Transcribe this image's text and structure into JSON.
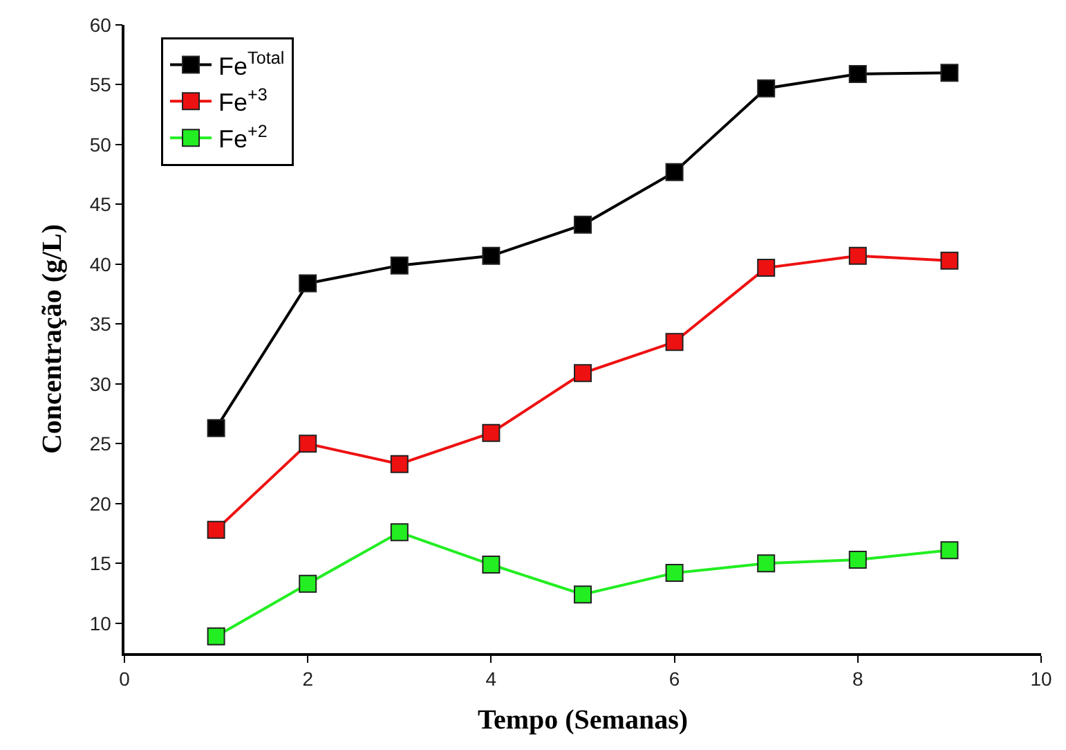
{
  "chart_data": {
    "type": "line",
    "xlabel": "Tempo (Semanas)",
    "ylabel": "Concentração (g/L)",
    "x": [
      1,
      2,
      3,
      4,
      5,
      6,
      7,
      8,
      9
    ],
    "series": [
      {
        "name": "Fe$^{Total}$",
        "color": "#000000",
        "values": [
          26.3,
          38.4,
          39.9,
          40.7,
          43.3,
          47.7,
          54.7,
          55.9,
          56.0
        ]
      },
      {
        "name": "Fe$^{+3}$",
        "color": "#ee1111",
        "values": [
          17.8,
          25.0,
          23.3,
          25.9,
          30.9,
          33.5,
          39.7,
          40.7,
          40.3
        ]
      },
      {
        "name": "Fe$^{+2}$",
        "color": "#22ee22",
        "values": [
          8.9,
          13.3,
          17.6,
          14.9,
          12.4,
          14.2,
          15.0,
          15.3,
          16.1
        ]
      }
    ],
    "xlim": [
      0,
      10
    ],
    "xticks": [
      0,
      2,
      4,
      6,
      8,
      10
    ],
    "ylim": [
      7.5,
      60
    ],
    "yticks": [
      10,
      15,
      20,
      25,
      30,
      35,
      40,
      45,
      50,
      55,
      60
    ],
    "legend": "top left",
    "marker": "square",
    "line_style": "solid"
  }
}
